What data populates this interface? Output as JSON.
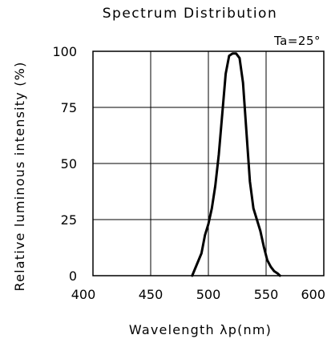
{
  "chart_data": {
    "type": "line",
    "title": "Spectrum Distribution",
    "annotation": "Ta=25°",
    "xlabel": "Wavelength λp(nm)",
    "ylabel": "Relative luminous intensity (%)",
    "xlim": [
      400,
      600
    ],
    "ylim": [
      0,
      100
    ],
    "x_ticks": [
      "400",
      "450",
      "500",
      "550",
      "600"
    ],
    "y_ticks": [
      "0",
      "25",
      "50",
      "75",
      "100"
    ],
    "grid": true,
    "series": [
      {
        "color": "#000000",
        "x": [
          486,
          490,
          494,
          497,
          500,
          503,
          506,
          509,
          512,
          515,
          518,
          521,
          524,
          527,
          530,
          533,
          536,
          539,
          542,
          545,
          548,
          551,
          554,
          557,
          560,
          562
        ],
        "y": [
          0,
          5,
          10,
          18,
          23,
          30,
          40,
          54,
          72,
          90,
          98,
          99,
          99,
          97,
          86,
          64,
          42,
          30,
          25,
          20,
          13,
          7,
          4,
          2,
          1,
          0
        ]
      }
    ]
  }
}
